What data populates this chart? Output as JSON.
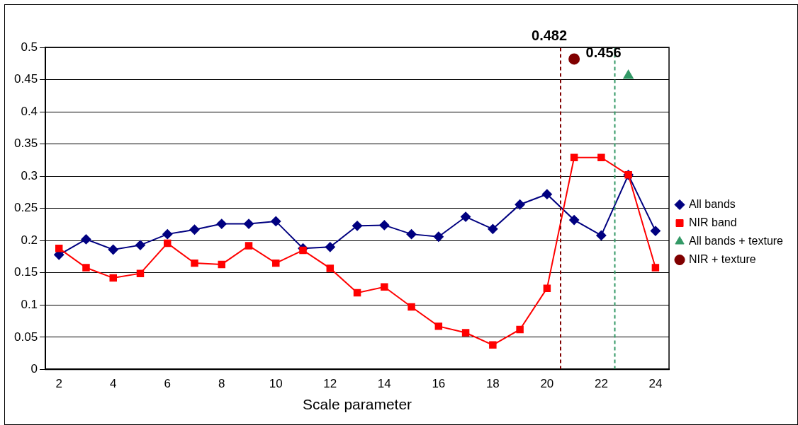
{
  "chart_data": {
    "type": "line",
    "xlabel": "Scale parameter",
    "x": [
      2,
      3,
      4,
      5,
      6,
      7,
      8,
      9,
      10,
      11,
      12,
      13,
      14,
      15,
      16,
      17,
      18,
      19,
      20,
      21,
      22,
      23,
      24
    ],
    "series": [
      {
        "name": "All bands",
        "color": "#000080",
        "marker": "diamond",
        "values": [
          0.178,
          0.202,
          0.186,
          0.193,
          0.21,
          0.217,
          0.226,
          0.226,
          0.23,
          0.188,
          0.19,
          0.223,
          0.224,
          0.21,
          0.206,
          0.237,
          0.218,
          0.256,
          0.272,
          0.232,
          0.208,
          0.302,
          0.215
        ]
      },
      {
        "name": "NIR band",
        "color": "#ff0000",
        "marker": "square",
        "values": [
          0.188,
          0.158,
          0.142,
          0.149,
          0.196,
          0.165,
          0.163,
          0.192,
          0.165,
          0.185,
          0.157,
          0.119,
          0.128,
          0.097,
          0.067,
          0.057,
          0.038,
          0.062,
          0.126,
          0.329,
          0.329,
          0.302,
          0.158
        ]
      },
      {
        "name": "All bands + texture",
        "type": "scatter",
        "color": "#339966",
        "marker": "triangle",
        "x": [
          23
        ],
        "values": [
          0.456
        ],
        "value_labels": [
          "0.456"
        ]
      },
      {
        "name": "NIR + texture",
        "type": "scatter",
        "color": "#800000",
        "marker": "circle",
        "x": [
          21
        ],
        "values": [
          0.482
        ],
        "value_labels": [
          "0.482"
        ]
      }
    ],
    "xlim": [
      1.5,
      24.5
    ],
    "xticks": [
      2,
      4,
      6,
      8,
      10,
      12,
      14,
      16,
      18,
      20,
      22,
      24
    ],
    "ylim": [
      0,
      0.5
    ],
    "yticks": [
      0,
      0.05,
      0.1,
      0.15,
      0.2,
      0.25,
      0.3,
      0.35,
      0.4,
      0.45,
      0.5
    ],
    "ref_lines": [
      {
        "axis": "x",
        "value": 20.5,
        "color": "#800000",
        "line_style": "dashed"
      },
      {
        "axis": "x",
        "value": 22.5,
        "color": "#339966",
        "line_style": "dashed"
      }
    ],
    "grid": "y",
    "legend": "right"
  }
}
